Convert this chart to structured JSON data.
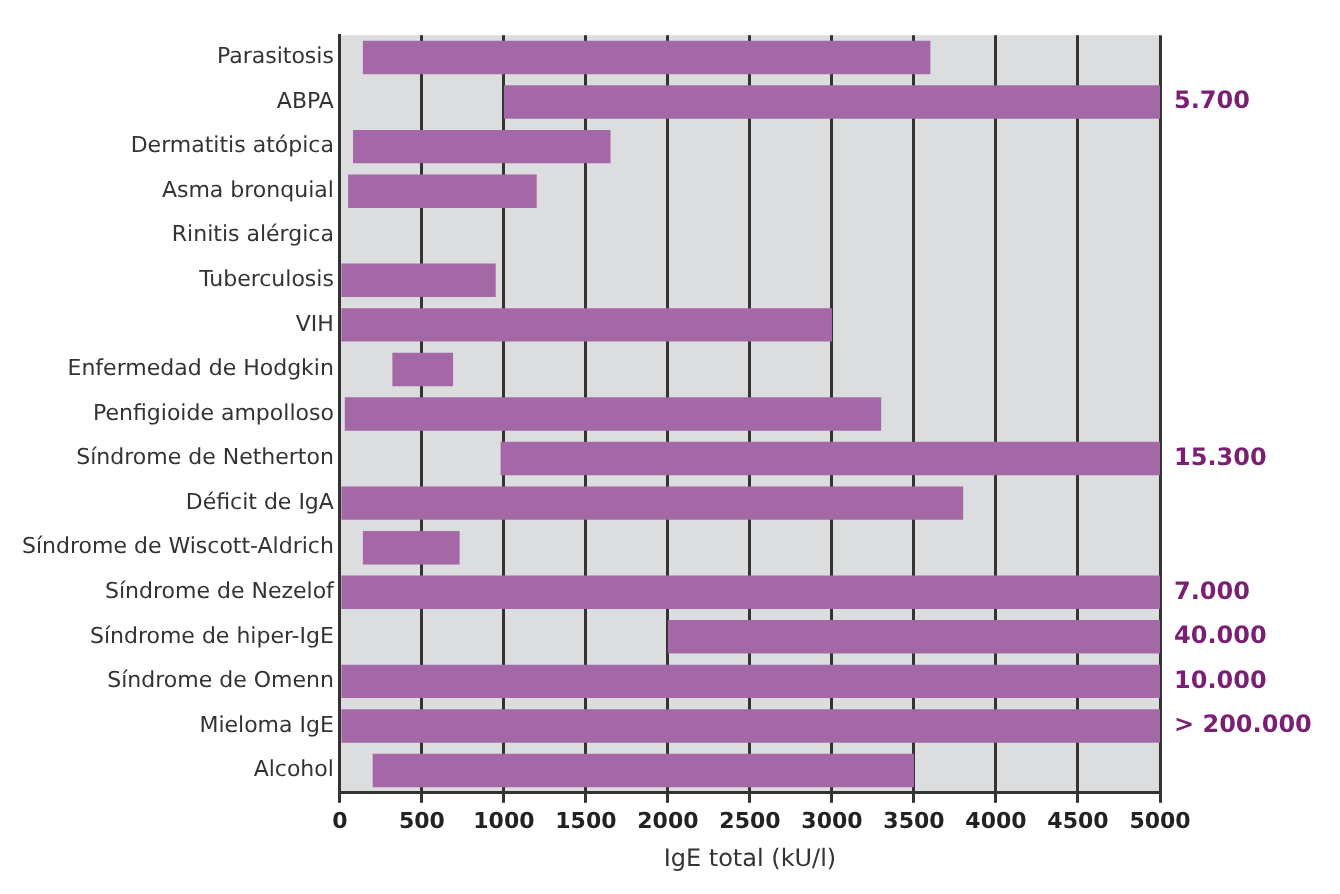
{
  "chart_data": {
    "type": "bar",
    "orientation": "horizontal",
    "xlabel": "IgE total (kU/l)",
    "categories": [
      "Parasitosis",
      "ABPA",
      "Dermatitis atópica",
      "Asma bronquial",
      "Rinitis alérgica",
      "Tuberculosis",
      "VIH",
      "Enfermedad de Hodgkin",
      "Penfigioide ampolloso",
      "Síndrome de Netherton",
      "Déficit de IgA",
      "Síndrome de Wiscott-Aldrich",
      "Síndrome de Nezelof",
      "Síndrome de hiper-IgE",
      "Síndrome de Omenn",
      "Mieloma IgE",
      "Alcohol"
    ],
    "base": [
      140,
      1000,
      80,
      50,
      null,
      0,
      0,
      320,
      30,
      980,
      0,
      140,
      0,
      2000,
      0,
      0,
      200
    ],
    "values": [
      3460,
      4000,
      1570,
      1150,
      null,
      950,
      3000,
      370,
      3270,
      4020,
      3800,
      590,
      5000,
      3000,
      5000,
      5000,
      3300
    ],
    "annotations": [
      "5.700",
      "15.300",
      "7.000",
      "40.000",
      "10.000",
      "> 200.000"
    ],
    "color": "#a468a6",
    "xlim": [
      0,
      5000
    ],
    "xticks": [
      0,
      500,
      1000,
      1500,
      2000,
      2500,
      3000,
      3500,
      4000,
      4500,
      5000
    ],
    "grid": "x"
  }
}
